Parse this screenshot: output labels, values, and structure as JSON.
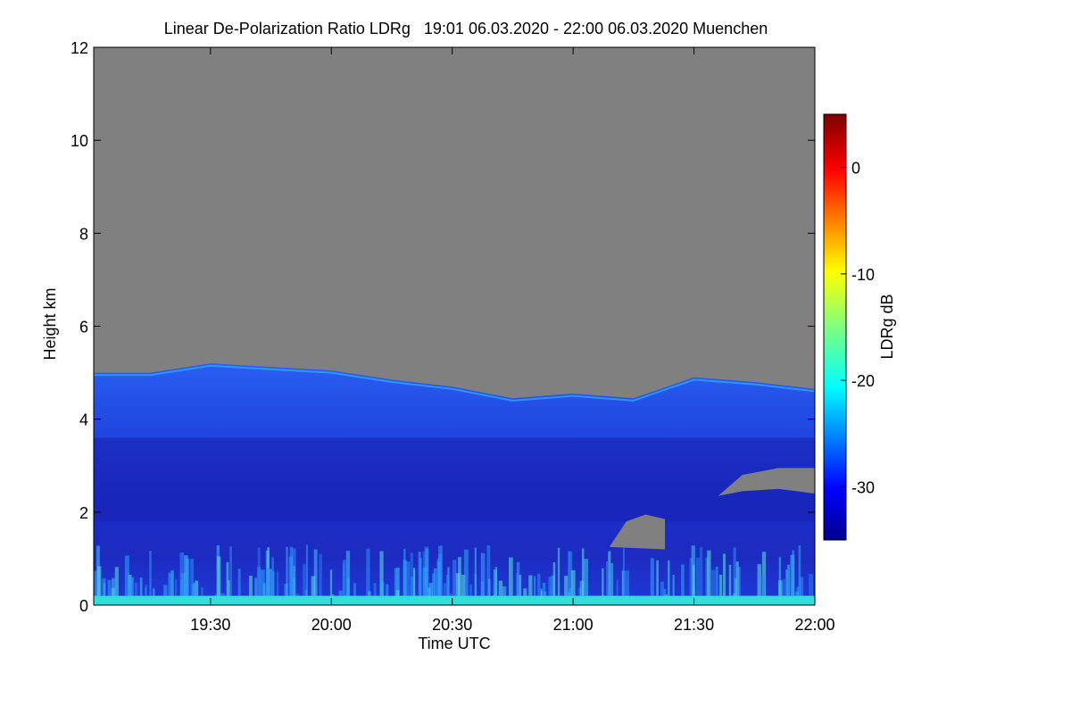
{
  "chart_data": {
    "type": "heatmap",
    "title": "Linear De-Polarization Ratio LDRg   19:01 06.03.2020 - 22:00 06.03.2020 Muenchen",
    "xlabel": "Time UTC",
    "ylabel": "Height km",
    "x_range_hours": [
      19.017,
      22.0
    ],
    "x_ticks": [
      {
        "value": 19.5,
        "label": "19:30"
      },
      {
        "value": 20.0,
        "label": "20:00"
      },
      {
        "value": 20.5,
        "label": "20:30"
      },
      {
        "value": 21.0,
        "label": "21:00"
      },
      {
        "value": 21.5,
        "label": "21:30"
      },
      {
        "value": 22.0,
        "label": "22:00"
      }
    ],
    "ylim": [
      0,
      12
    ],
    "y_ticks": [
      0,
      2,
      4,
      6,
      8,
      10,
      12
    ],
    "colorbar": {
      "label": "LDRg dB",
      "range": [
        -35,
        5
      ],
      "ticks": [
        0,
        -10,
        -20,
        -30
      ],
      "colormap": "jet"
    },
    "no_data_color": "#808080",
    "cloud_top_km": [
      {
        "time": 19.017,
        "height": 5.0
      },
      {
        "time": 19.25,
        "height": 5.0
      },
      {
        "time": 19.5,
        "height": 5.2
      },
      {
        "time": 20.0,
        "height": 5.05
      },
      {
        "time": 20.25,
        "height": 4.85
      },
      {
        "time": 20.5,
        "height": 4.7
      },
      {
        "time": 20.75,
        "height": 4.45
      },
      {
        "time": 21.0,
        "height": 4.55
      },
      {
        "time": 21.25,
        "height": 4.45
      },
      {
        "time": 21.5,
        "height": 4.9
      },
      {
        "time": 21.75,
        "height": 4.8
      },
      {
        "time": 22.0,
        "height": 4.65
      }
    ],
    "gaps_km": [
      {
        "label": "lower gap right",
        "polygon": [
          [
            21.6,
            2.35
          ],
          [
            21.7,
            2.8
          ],
          [
            21.85,
            2.95
          ],
          [
            22.0,
            2.95
          ],
          [
            22.0,
            2.4
          ],
          [
            21.85,
            2.5
          ],
          [
            21.7,
            2.45
          ]
        ]
      },
      {
        "label": "small gap mid",
        "polygon": [
          [
            21.15,
            1.25
          ],
          [
            21.22,
            1.8
          ],
          [
            21.3,
            1.95
          ],
          [
            21.38,
            1.85
          ],
          [
            21.38,
            1.2
          ]
        ]
      }
    ],
    "layers_dB": [
      {
        "name": "cloud interior",
        "height_km": [
          0.35,
          5.0
        ],
        "ldr_dB": -30
      },
      {
        "name": "darker mid band",
        "height_km": [
          1.8,
          3.6
        ],
        "ldr_dB": -33
      },
      {
        "name": "top edge",
        "height_km": [
          4.4,
          4.6
        ],
        "ldr_dB": -22
      },
      {
        "name": "boundary layer",
        "height_km": [
          0.2,
          1.3
        ],
        "ldr_dB": -24
      },
      {
        "name": "surface layer",
        "height_km": [
          0.0,
          0.2
        ],
        "ldr_dB": -18
      }
    ]
  }
}
